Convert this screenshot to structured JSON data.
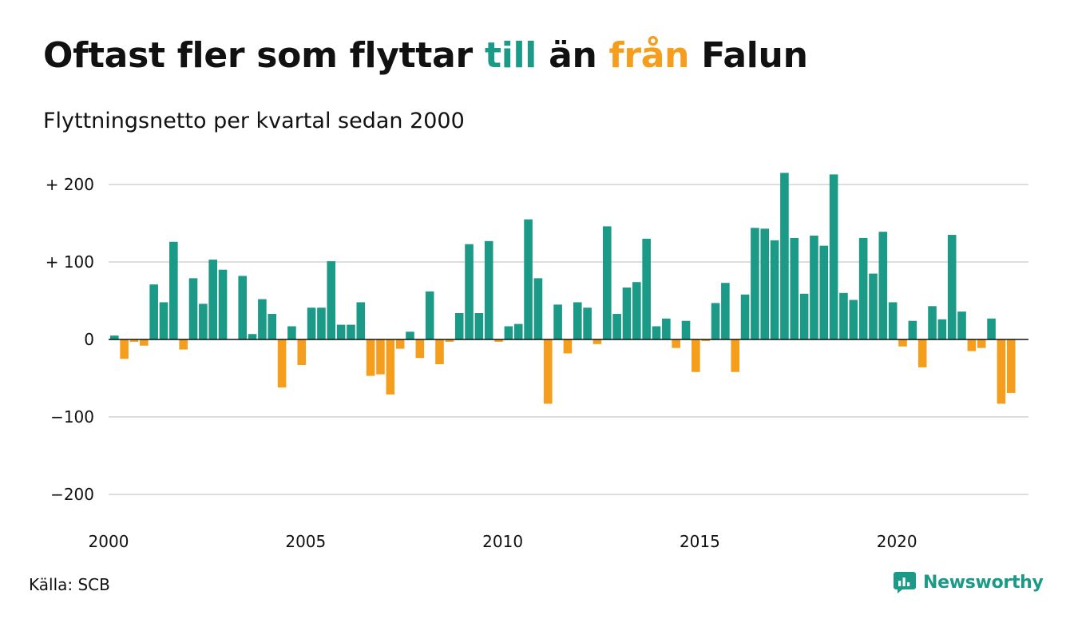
{
  "title": {
    "part1": "Oftast fler som flyttar ",
    "part2": "till",
    "part3": " än ",
    "part4": "från",
    "part5": " Falun"
  },
  "subtitle": "Flyttningsnetto per kvartal sedan 2000",
  "source": "Källa: SCB",
  "brand": "Newsworthy",
  "colors": {
    "positive": "#1a9a87",
    "negative": "#f59e1d",
    "grid": "#dddddd",
    "axis": "#111111",
    "text": "#111111"
  },
  "chart_data": {
    "type": "bar",
    "x_start": "2000 Q1",
    "x_ticks": [
      {
        "label": "2000",
        "x": 2000
      },
      {
        "label": "2005",
        "x": 2005
      },
      {
        "label": "2010",
        "x": 2010
      },
      {
        "label": "2015",
        "x": 2015
      },
      {
        "label": "2020",
        "x": 2020
      }
    ],
    "y_ticks": [
      {
        "label": "+ 200",
        "y": 200
      },
      {
        "label": "+ 100",
        "y": 100
      },
      {
        "label": "0",
        "y": 0
      },
      {
        "label": "−100",
        "y": -100
      },
      {
        "label": "−200",
        "y": -200
      }
    ],
    "ylim": [
      -215,
      220
    ],
    "xlim": [
      2000,
      2023.25
    ],
    "grid": true,
    "values": [
      5,
      -25,
      -3,
      -8,
      71,
      48,
      126,
      -13,
      79,
      46,
      103,
      90,
      0,
      82,
      7,
      52,
      33,
      -62,
      17,
      -33,
      41,
      41,
      101,
      19,
      19,
      48,
      -47,
      -45,
      -71,
      -12,
      10,
      -24,
      62,
      -32,
      -3,
      34,
      123,
      34,
      127,
      -3,
      17,
      20,
      155,
      79,
      -83,
      45,
      -18,
      48,
      41,
      -6,
      146,
      33,
      67,
      74,
      130,
      17,
      27,
      -11,
      24,
      -42,
      -2,
      47,
      73,
      -42,
      58,
      144,
      143,
      128,
      215,
      131,
      59,
      134,
      121,
      213,
      60,
      51,
      131,
      85,
      139,
      48,
      -9,
      24,
      -36,
      43,
      26,
      135,
      36,
      -15,
      -11,
      27,
      -83,
      -69
    ]
  }
}
